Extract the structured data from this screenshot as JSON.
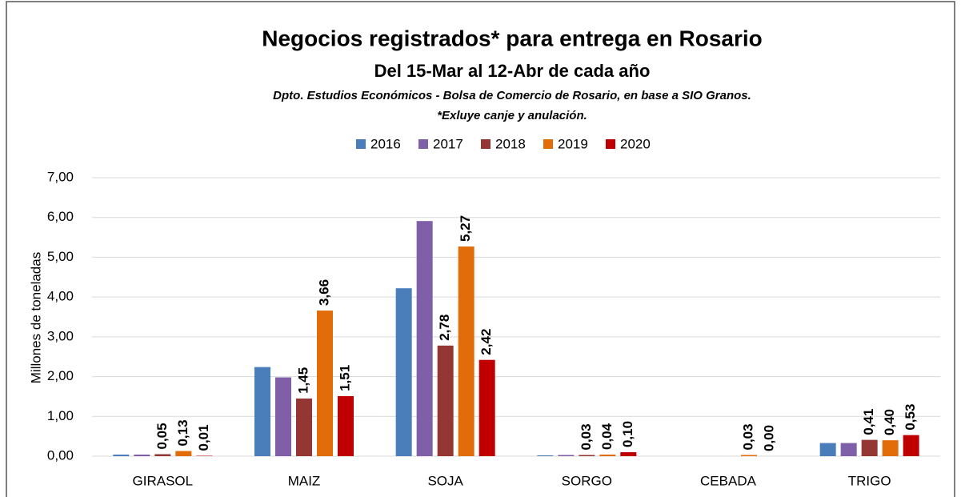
{
  "chart_data": {
    "type": "bar",
    "title": "Negocios registrados* para entrega en Rosario",
    "subtitle": "Del 15-Mar al 12-Abr de cada año",
    "source": "Dpto. Estudios Económicos - Bolsa de Comercio de Rosario, en base a SIO Granos.",
    "note": "*Exluye canje y anulación.",
    "y_label": "Millones de toneladas",
    "categories": [
      "GIRASOL",
      "MAIZ",
      "SOJA",
      "SORGO",
      "CEBADA",
      "TRIGO"
    ],
    "series": [
      {
        "name": "2016",
        "color": "#4a7ebb",
        "values": [
          0.04,
          2.24,
          4.22,
          0.02,
          null,
          0.33
        ]
      },
      {
        "name": "2017",
        "color": "#7f5fa8",
        "values": [
          0.04,
          1.98,
          5.91,
          0.03,
          null,
          0.33
        ]
      },
      {
        "name": "2018",
        "color": "#943634",
        "values": [
          0.05,
          1.45,
          2.78,
          0.03,
          null,
          0.41
        ],
        "value_labels": [
          "0,05",
          "1,45",
          "2,78",
          "0,03",
          null,
          "0,41"
        ]
      },
      {
        "name": "2019",
        "color": "#e36c0a",
        "values": [
          0.13,
          3.66,
          5.27,
          0.04,
          0.03,
          0.4
        ],
        "value_labels": [
          "0,13",
          "3,66",
          "5,27",
          "0,04",
          "0,03",
          "0,40"
        ]
      },
      {
        "name": "2020",
        "color": "#c00000",
        "values": [
          0.01,
          1.51,
          2.42,
          0.1,
          0.0,
          0.53
        ],
        "value_labels": [
          "0,01",
          "1,51",
          "2,42",
          "0,10",
          "0,00",
          "0,53"
        ]
      }
    ],
    "ylim": [
      0,
      7
    ],
    "yticks": [
      {
        "value": 0,
        "label": "0,00"
      },
      {
        "value": 1,
        "label": "1,00"
      },
      {
        "value": 2,
        "label": "2,00"
      },
      {
        "value": 3,
        "label": "3,00"
      },
      {
        "value": 4,
        "label": "4,00"
      },
      {
        "value": 5,
        "label": "5,00"
      },
      {
        "value": 6,
        "label": "6,00"
      },
      {
        "value": 7,
        "label": "7,00"
      }
    ],
    "grid": true,
    "legend": "top"
  }
}
